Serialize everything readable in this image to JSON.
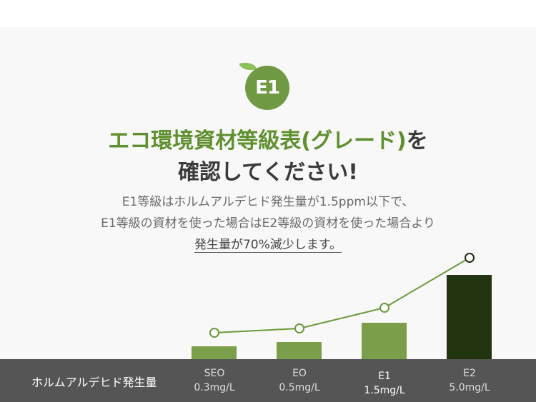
{
  "badge": "E1",
  "title": {
    "line1_green": "エコ環境資材等級表(グレード)",
    "line1_dark": "を",
    "line2": "確認してください!"
  },
  "description": {
    "line1": "E1等級はホルムアルデヒド発生量が1.5ppm以下で、",
    "line2": "E1等級の資材を使った場合はE2等級の資材を使った場合より",
    "line3": "発生量が70%減少します。"
  },
  "chart_data": {
    "type": "bar",
    "ylabel": "ホルムアルデヒド発生量",
    "categories": [
      "SEO",
      "EO",
      "E1",
      "E2"
    ],
    "value_labels": [
      "0.3mg/L",
      "0.5mg/L",
      "1.5mg/L",
      "5.0mg/L"
    ],
    "values": [
      0.3,
      0.5,
      1.5,
      5.0
    ],
    "highlight": "E1",
    "colors": {
      "bar": "#7a9e4a",
      "bar_max": "#22330f",
      "line": "#6a9a3a"
    }
  }
}
